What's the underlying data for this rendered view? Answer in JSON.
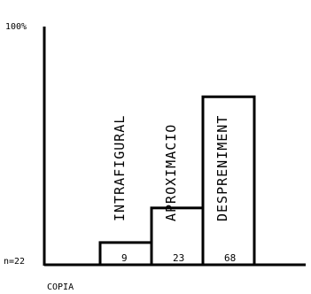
{
  "chart_data": {
    "type": "bar",
    "title": "",
    "xlabel": "COPIA",
    "ylabel": "",
    "y_top_label": "100%",
    "sample_label": "n=22",
    "ylim": [
      0,
      100
    ],
    "categories": [
      "INTRAFIGURAL",
      "APROXIMACIO",
      "DESPRENIMENT"
    ],
    "values": [
      9,
      23,
      68
    ],
    "value_labels": [
      "9",
      "23",
      "68"
    ]
  }
}
